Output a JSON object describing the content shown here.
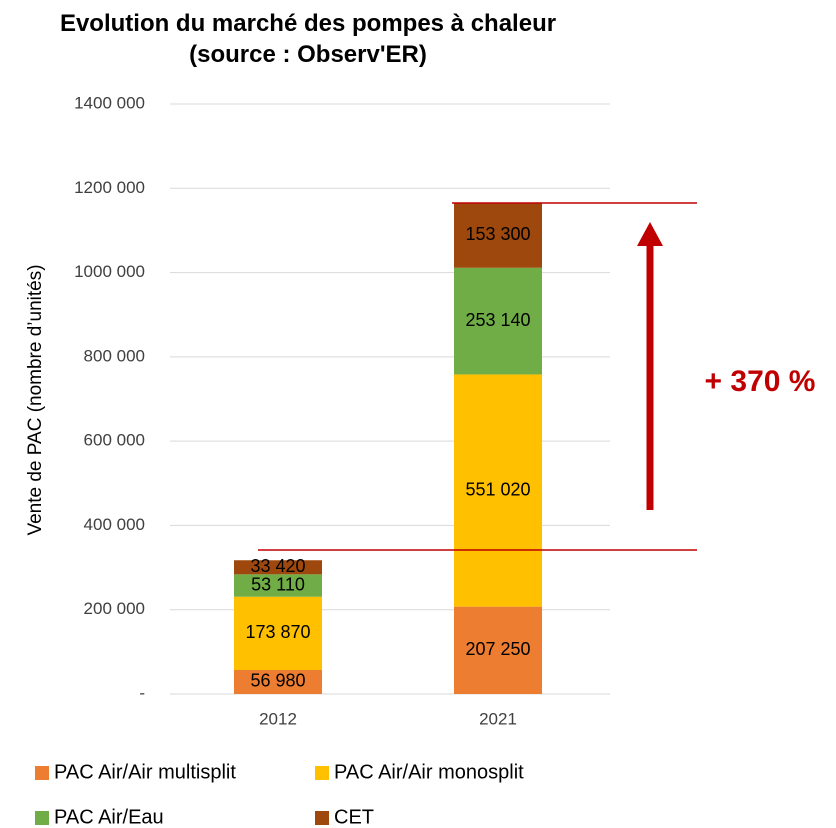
{
  "chart_data": {
    "type": "stacked_bar",
    "title": "Evolution du marché des pompes à chaleur (source : Observ'ER)",
    "y_label": "Vente de PAC (nombre d’unités)",
    "annotation": "+ 370 %",
    "categories": [
      "2012",
      "2021"
    ],
    "series": [
      {
        "name": "PAC Air/Air multisplit",
        "color": "#ED7D31",
        "values": [
          56980,
          207250
        ],
        "value_labels": [
          "56 980",
          "207 250"
        ]
      },
      {
        "name": "PAC Air/Air monosplit",
        "color": "#FFC000",
        "values": [
          173870,
          551020
        ],
        "value_labels": [
          "173 870",
          "551 020"
        ]
      },
      {
        "name": "PAC Air/Eau",
        "color": "#70AD47",
        "values": [
          53110,
          253140
        ],
        "value_labels": [
          "53 110",
          "253 140"
        ]
      },
      {
        "name": "CET",
        "color": "#9E480E",
        "values": [
          33420,
          153300
        ],
        "value_labels": [
          "33 420",
          "153 300"
        ]
      }
    ],
    "ylim": [
      0,
      1400000
    ],
    "yticks": [
      {
        "value": 0,
        "label": "-"
      },
      {
        "value": 200000,
        "label": "200 000"
      },
      {
        "value": 400000,
        "label": "400 000"
      },
      {
        "value": 600000,
        "label": "600 000"
      },
      {
        "value": 800000,
        "label": "800 000"
      },
      {
        "value": 1000000,
        "label": "1000 000"
      },
      {
        "value": 1200000,
        "label": "1200 000"
      },
      {
        "value": 1400000,
        "label": "1400 000"
      }
    ],
    "grid": true
  }
}
